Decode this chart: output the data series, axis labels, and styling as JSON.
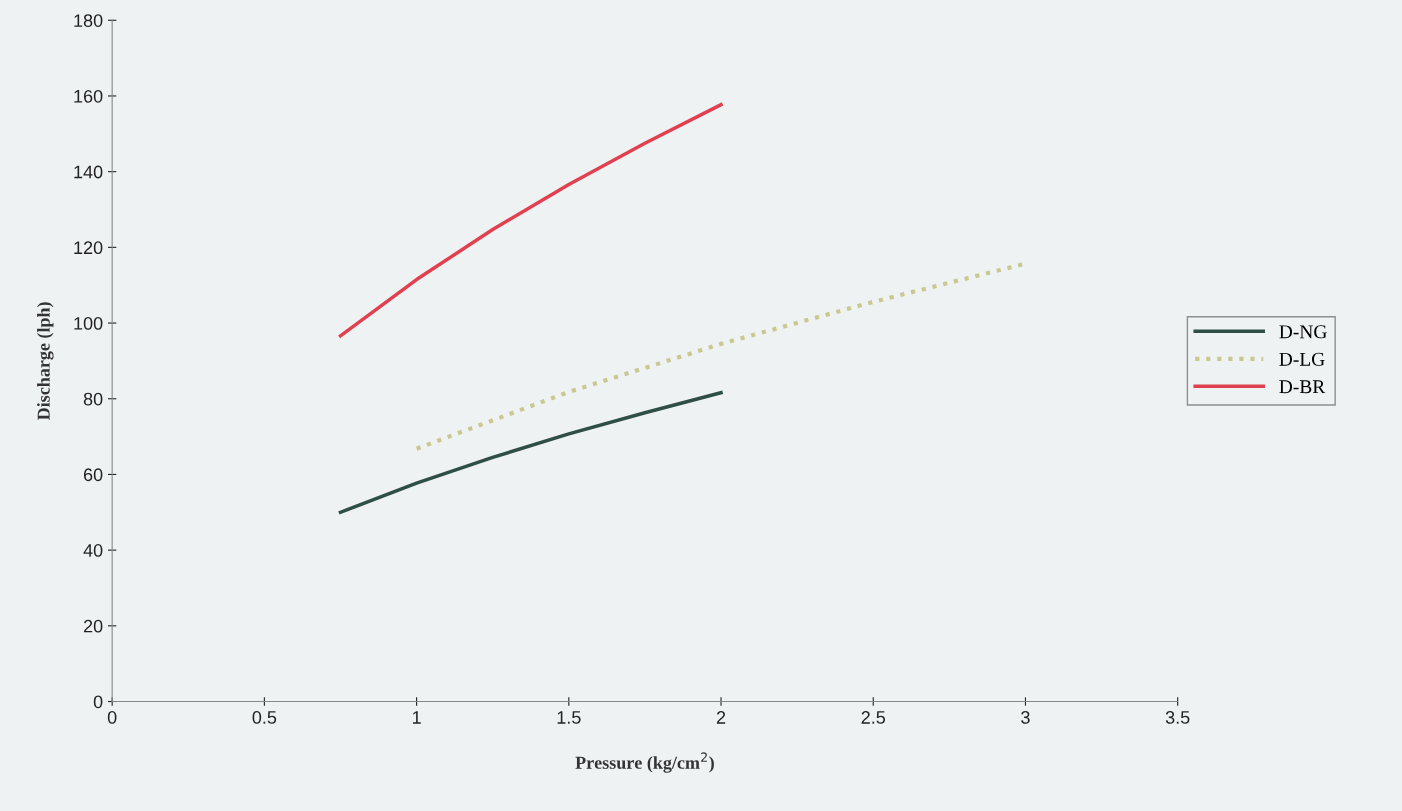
{
  "chart_data": {
    "type": "line",
    "xlabel": "Pressure (kg/cm$^{2}$)",
    "ylabel": "Discharge (lph)",
    "xlim": [
      0,
      3.5
    ],
    "xticks": [
      0,
      0.5,
      1,
      1.5,
      2,
      2.5,
      3,
      3.5
    ],
    "ylim": [
      0,
      180
    ],
    "yticks": [
      0,
      20,
      40,
      60,
      80,
      100,
      120,
      140,
      160,
      180
    ],
    "grid": false,
    "legend": "right",
    "marker": "none",
    "series": [
      {
        "name": "D-NG",
        "color": "#2f4f45",
        "line_style": "solid",
        "x": [
          0.75,
          1,
          1.25,
          1.5,
          1.75,
          2
        ],
        "values": [
          50,
          57.7,
          64.5,
          70.7,
          76.3,
          81.6
        ]
      },
      {
        "name": "D-LG",
        "color": "#c8c890",
        "line_style": "dotted",
        "x": [
          1,
          1.5,
          2,
          2.5,
          3
        ],
        "values": [
          66.8,
          81.8,
          94.5,
          105.6,
          115.7
        ]
      },
      {
        "name": "D-BR",
        "color": "#e04050",
        "line_style": "solid",
        "x": [
          0.75,
          1,
          1.25,
          1.5,
          1.75,
          2
        ],
        "values": [
          96.6,
          111.5,
          124.7,
          136.6,
          147.5,
          157.7
        ]
      }
    ]
  }
}
